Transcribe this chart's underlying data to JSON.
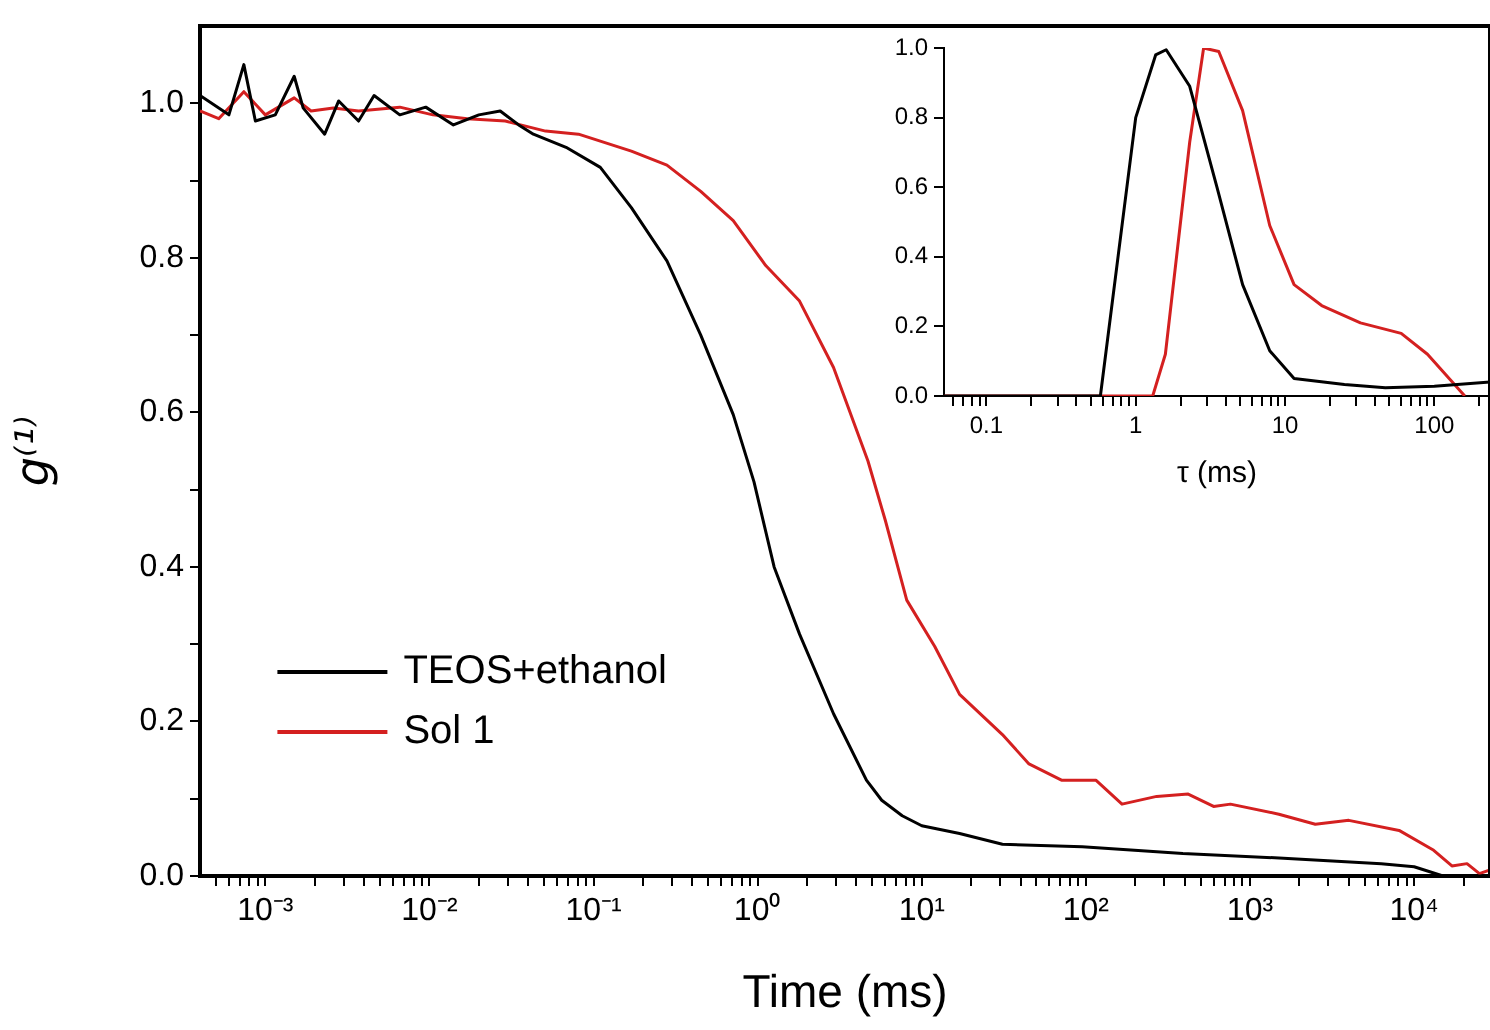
{
  "chart_data": [
    {
      "type": "line",
      "xlabel": "Time (ms)",
      "ylabel": "g⁽¹⁾",
      "log": "x",
      "xlim": [
        0.0004,
        29000
      ],
      "ylim": [
        0,
        1.1
      ],
      "xticks": [
        {
          "value": 0.0005,
          "label": null
        },
        {
          "value": 0.0006,
          "label": null
        },
        {
          "value": 0.0007,
          "label": null
        },
        {
          "value": 0.0008,
          "label": null
        },
        {
          "value": 0.0009,
          "label": null
        },
        {
          "value": 0.001,
          "label": "10⁻³"
        },
        {
          "value": 0.002,
          "label": null
        },
        {
          "value": 0.003,
          "label": null
        },
        {
          "value": 0.004,
          "label": null
        },
        {
          "value": 0.005,
          "label": null
        },
        {
          "value": 0.006,
          "label": null
        },
        {
          "value": 0.007,
          "label": null
        },
        {
          "value": 0.008,
          "label": null
        },
        {
          "value": 0.009,
          "label": null
        },
        {
          "value": 0.01,
          "label": "10⁻²"
        },
        {
          "value": 0.02,
          "label": null
        },
        {
          "value": 0.03,
          "label": null
        },
        {
          "value": 0.04,
          "label": null
        },
        {
          "value": 0.05,
          "label": null
        },
        {
          "value": 0.06,
          "label": null
        },
        {
          "value": 0.07,
          "label": null
        },
        {
          "value": 0.08,
          "label": null
        },
        {
          "value": 0.09,
          "label": null
        },
        {
          "value": 0.1,
          "label": "10⁻¹"
        },
        {
          "value": 0.2,
          "label": null
        },
        {
          "value": 0.3,
          "label": null
        },
        {
          "value": 0.4,
          "label": null
        },
        {
          "value": 0.5,
          "label": null
        },
        {
          "value": 0.6,
          "label": null
        },
        {
          "value": 0.7,
          "label": null
        },
        {
          "value": 0.8,
          "label": null
        },
        {
          "value": 0.9,
          "label": null
        },
        {
          "value": 1,
          "label": "10⁰"
        },
        {
          "value": 2,
          "label": null
        },
        {
          "value": 3,
          "label": null
        },
        {
          "value": 4,
          "label": null
        },
        {
          "value": 5,
          "label": null
        },
        {
          "value": 6,
          "label": null
        },
        {
          "value": 7,
          "label": null
        },
        {
          "value": 8,
          "label": null
        },
        {
          "value": 9,
          "label": null
        },
        {
          "value": 10,
          "label": "10¹"
        },
        {
          "value": 20,
          "label": null
        },
        {
          "value": 30,
          "label": null
        },
        {
          "value": 40,
          "label": null
        },
        {
          "value": 50,
          "label": null
        },
        {
          "value": 60,
          "label": null
        },
        {
          "value": 70,
          "label": null
        },
        {
          "value": 80,
          "label": null
        },
        {
          "value": 90,
          "label": null
        },
        {
          "value": 100,
          "label": "10²"
        },
        {
          "value": 200,
          "label": null
        },
        {
          "value": 300,
          "label": null
        },
        {
          "value": 400,
          "label": null
        },
        {
          "value": 500,
          "label": null
        },
        {
          "value": 600,
          "label": null
        },
        {
          "value": 700,
          "label": null
        },
        {
          "value": 800,
          "label": null
        },
        {
          "value": 900,
          "label": null
        },
        {
          "value": 1000,
          "label": "10³"
        },
        {
          "value": 2000,
          "label": null
        },
        {
          "value": 3000,
          "label": null
        },
        {
          "value": 4000,
          "label": null
        },
        {
          "value": 5000,
          "label": null
        },
        {
          "value": 6000,
          "label": null
        },
        {
          "value": 7000,
          "label": null
        },
        {
          "value": 8000,
          "label": null
        },
        {
          "value": 9000,
          "label": null
        },
        {
          "value": 10000,
          "label": "10⁴"
        },
        {
          "value": 20000,
          "label": null
        }
      ],
      "yticks": [
        {
          "value": 0,
          "label": "0.0"
        },
        {
          "value": 0.1,
          "label": null
        },
        0.2,
        {
          "value": 0.3,
          "label": null
        },
        0.4,
        {
          "value": 0.5,
          "label": null
        },
        0.6,
        {
          "value": 0.7,
          "label": null
        },
        0.8,
        {
          "value": 0.9,
          "label": null
        },
        {
          "value": 1,
          "label": "1.0"
        }
      ],
      "grid": false,
      "legend": "left",
      "marker": "none",
      "line_style": "solid",
      "series": [
        {
          "name": "TEOS+ethanol",
          "color": "#000000",
          "x": [
            0.0004,
            0.0006,
            0.00074,
            0.00087,
            0.00115,
            0.0015,
            0.0017,
            0.0023,
            0.0028,
            0.0037,
            0.0046,
            0.0066,
            0.0095,
            0.014,
            0.02,
            0.027,
            0.035,
            0.043,
            0.068,
            0.11,
            0.17,
            0.28,
            0.45,
            0.71,
            0.95,
            1.26,
            1.8,
            2.9,
            4.6,
            5.7,
            7.6,
            10,
            17,
            31,
            95,
            390,
            1600,
            6300,
            10000,
            15000,
            29000
          ],
          "values": [
            1.01,
            0.985,
            1.05,
            0.977,
            0.985,
            1.035,
            0.994,
            0.96,
            1.003,
            0.977,
            1.01,
            0.985,
            0.995,
            0.972,
            0.985,
            0.99,
            0.972,
            0.96,
            0.943,
            0.917,
            0.865,
            0.796,
            0.7,
            0.597,
            0.51,
            0.4,
            0.313,
            0.21,
            0.124,
            0.098,
            0.078,
            0.065,
            0.055,
            0.041,
            0.038,
            0.029,
            0.023,
            0.016,
            0.012,
            0,
            0
          ]
        },
        {
          "name": "Sol 1",
          "color": "#d42020",
          "x": [
            0.0004,
            0.00052,
            0.00074,
            0.001,
            0.0015,
            0.0019,
            0.0026,
            0.0037,
            0.0066,
            0.0105,
            0.017,
            0.029,
            0.051,
            0.081,
            0.17,
            0.28,
            0.45,
            0.71,
            1.12,
            1.8,
            2.9,
            4.7,
            6,
            8.1,
            12,
            17,
            31,
            45,
            71,
            115,
            166,
            270,
            420,
            600,
            760,
            1500,
            2500,
            4000,
            8100,
            13000,
            17000,
            21000,
            25000,
            29000
          ],
          "values": [
            0.99,
            0.98,
            1.015,
            0.985,
            1.007,
            0.99,
            0.994,
            0.99,
            0.995,
            0.985,
            0.98,
            0.977,
            0.964,
            0.96,
            0.938,
            0.92,
            0.886,
            0.848,
            0.79,
            0.744,
            0.658,
            0.537,
            0.46,
            0.357,
            0.297,
            0.235,
            0.183,
            0.145,
            0.124,
            0.124,
            0.093,
            0.103,
            0.106,
            0.09,
            0.093,
            0.08,
            0.067,
            0.072,
            0.059,
            0.034,
            0.013,
            0.016,
            0.003,
            0.008
          ]
        }
      ]
    },
    {
      "type": "line",
      "xlabel": "τ (ms)",
      "log": "x",
      "xlim": [
        0.052,
        236
      ],
      "ylim": [
        0,
        1
      ],
      "xticks": [
        {
          "value": 0.06,
          "label": null
        },
        {
          "value": 0.07,
          "label": null
        },
        {
          "value": 0.08,
          "label": null
        },
        {
          "value": 0.09,
          "label": null
        },
        0.1,
        {
          "value": 0.2,
          "label": null
        },
        {
          "value": 0.3,
          "label": null
        },
        {
          "value": 0.4,
          "label": null
        },
        {
          "value": 0.5,
          "label": null
        },
        {
          "value": 0.6,
          "label": null
        },
        {
          "value": 0.7,
          "label": null
        },
        {
          "value": 0.8,
          "label": null
        },
        {
          "value": 0.9,
          "label": null
        },
        1,
        {
          "value": 2,
          "label": null
        },
        {
          "value": 3,
          "label": null
        },
        {
          "value": 4,
          "label": null
        },
        {
          "value": 5,
          "label": null
        },
        {
          "value": 6,
          "label": null
        },
        {
          "value": 7,
          "label": null
        },
        {
          "value": 8,
          "label": null
        },
        {
          "value": 9,
          "label": null
        },
        10,
        {
          "value": 20,
          "label": null
        },
        {
          "value": 30,
          "label": null
        },
        {
          "value": 40,
          "label": null
        },
        {
          "value": 50,
          "label": null
        },
        {
          "value": 60,
          "label": null
        },
        {
          "value": 70,
          "label": null
        },
        {
          "value": 80,
          "label": null
        },
        {
          "value": 90,
          "label": null
        },
        100,
        {
          "value": 200,
          "label": null
        }
      ],
      "yticks": [
        {
          "value": 0,
          "label": "0.0"
        },
        0.2,
        0.4,
        0.6,
        0.8,
        {
          "value": 1,
          "label": "1.0"
        }
      ],
      "grid": false,
      "marker": "none",
      "line_style": "solid",
      "series": [
        {
          "color": "#000000",
          "x": [
            0.052,
            0.58,
            1,
            1.36,
            1.6,
            2.3,
            3.5,
            5.2,
            7.9,
            11.5,
            25,
            47,
            100,
            236
          ],
          "values": [
            0,
            0,
            0.8,
            0.98,
            0.995,
            0.89,
            0.6,
            0.32,
            0.13,
            0.05,
            0.033,
            0.024,
            0.028,
            0.04
          ]
        },
        {
          "color": "#d42020",
          "x": [
            0.052,
            1.3,
            1.58,
            2.3,
            2.85,
            3.6,
            5.2,
            7.9,
            11.5,
            17.6,
            32,
            60,
            90,
            160
          ],
          "values": [
            0,
            0,
            0.12,
            0.73,
            1,
            0.99,
            0.82,
            0.49,
            0.32,
            0.26,
            0.21,
            0.18,
            0.12,
            0
          ]
        }
      ]
    }
  ]
}
